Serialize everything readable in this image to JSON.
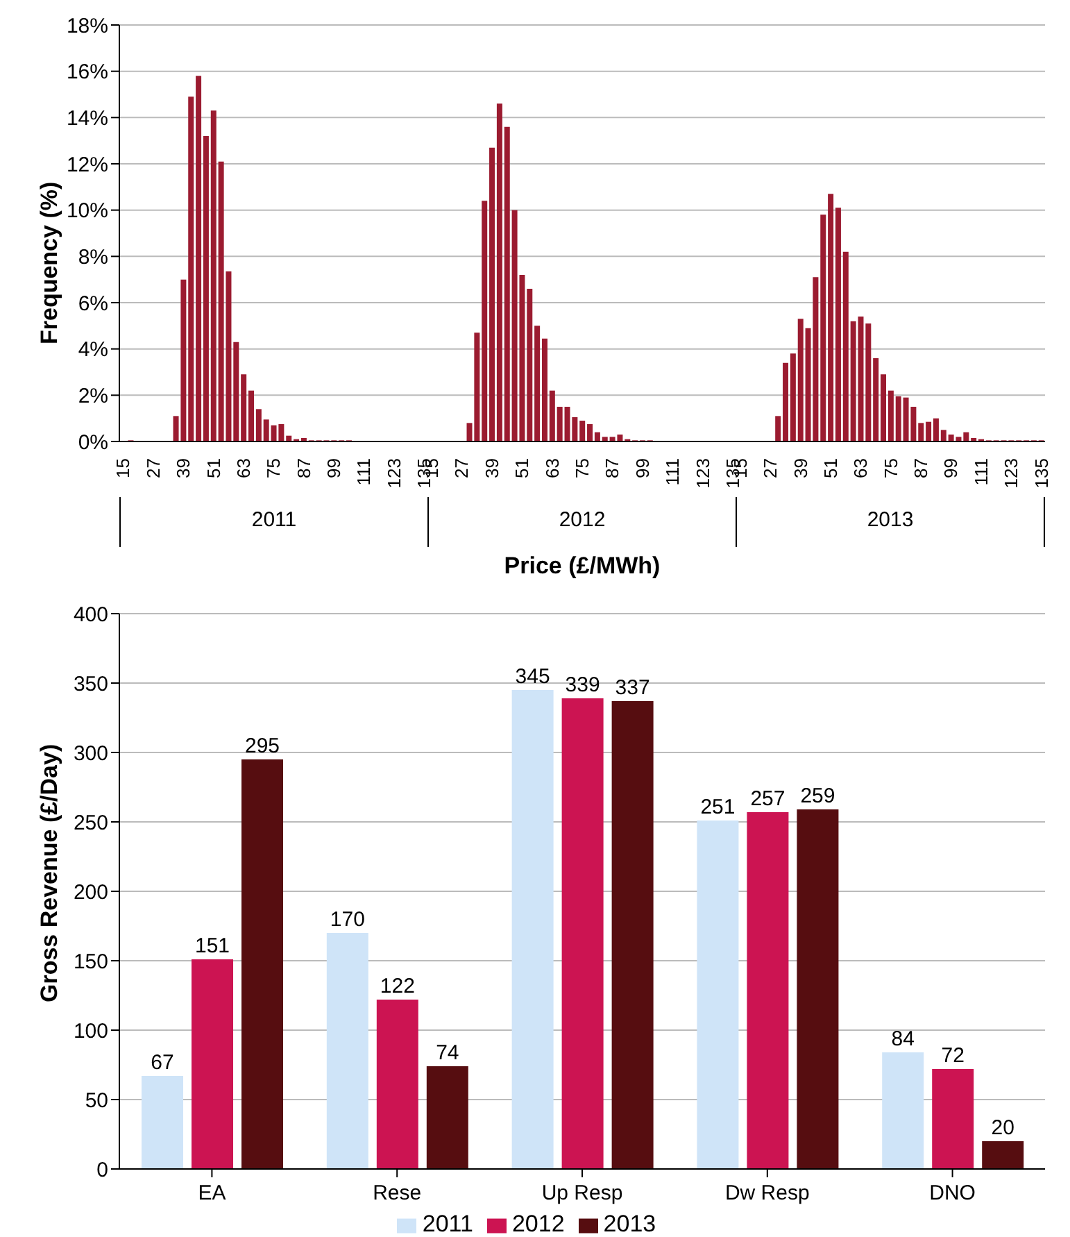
{
  "chart_data": [
    {
      "type": "bar",
      "xlabel": "Price (£/MWh)",
      "ylabel": "Frequency (%)",
      "categories": [
        "15",
        null,
        null,
        null,
        "27",
        null,
        null,
        null,
        "39",
        null,
        null,
        null,
        "51",
        null,
        null,
        null,
        "63",
        null,
        null,
        null,
        "75",
        null,
        null,
        null,
        "87",
        null,
        null,
        null,
        "99",
        null,
        null,
        null,
        "111",
        null,
        null,
        null,
        "123",
        null,
        null,
        null,
        "135",
        "15",
        null,
        null,
        null,
        "27",
        null,
        null,
        null,
        "39",
        null,
        null,
        null,
        "51",
        null,
        null,
        null,
        "63",
        null,
        null,
        null,
        "75",
        null,
        null,
        null,
        "87",
        null,
        null,
        null,
        "99",
        null,
        null,
        null,
        "111",
        null,
        null,
        null,
        "123",
        null,
        null,
        null,
        "135",
        "15",
        null,
        null,
        null,
        "27",
        null,
        null,
        null,
        "39",
        null,
        null,
        null,
        "51",
        null,
        null,
        null,
        "63",
        null,
        null,
        null,
        "75",
        null,
        null,
        null,
        "87",
        null,
        null,
        null,
        "99",
        null,
        null,
        null,
        "111",
        null,
        null,
        null,
        "123",
        null,
        null,
        null,
        "135"
      ],
      "values": [
        0,
        0.05,
        0,
        0,
        0,
        0,
        0,
        1.1,
        7.0,
        14.9,
        15.8,
        13.2,
        14.3,
        12.1,
        7.35,
        4.3,
        2.9,
        2.2,
        1.4,
        0.95,
        0.7,
        0.75,
        0.25,
        0.1,
        0.15,
        0.05,
        0.05,
        0.05,
        0.05,
        0.05,
        0.05,
        0,
        0,
        0,
        0,
        0,
        0,
        0,
        0,
        0,
        0,
        0,
        0,
        0,
        0,
        0,
        0.8,
        4.7,
        10.4,
        12.7,
        14.6,
        13.6,
        10.0,
        7.2,
        6.6,
        5.0,
        4.45,
        2.2,
        1.5,
        1.5,
        1.05,
        0.9,
        0.75,
        0.4,
        0.2,
        0.2,
        0.3,
        0.1,
        0.05,
        0.05,
        0.05,
        null,
        0,
        null,
        0,
        0,
        0,
        0,
        0,
        0,
        0,
        0,
        0,
        0,
        0,
        0,
        0,
        1.1,
        3.4,
        3.8,
        5.3,
        4.9,
        7.1,
        9.8,
        10.7,
        10.1,
        8.2,
        5.2,
        5.4,
        5.1,
        3.6,
        2.9,
        2.2,
        1.95,
        1.9,
        1.5,
        0.8,
        0.85,
        1.0,
        0.5,
        0.3,
        0.2,
        0.4,
        0.15,
        0.1,
        0.05,
        0.05,
        0.05,
        0.05,
        0.05,
        0.05,
        0.05,
        0.05
      ],
      "color": "#9b1b30",
      "ylim": [
        0,
        18
      ],
      "yticks": [
        {
          "value": 0,
          "label": "0%"
        },
        {
          "value": 2,
          "label": "2%"
        },
        {
          "value": 4,
          "label": "4%"
        },
        {
          "value": 6,
          "label": "6%"
        },
        {
          "value": 8,
          "label": "8%"
        },
        {
          "value": 10,
          "label": "10%"
        },
        {
          "value": 12,
          "label": "12%"
        },
        {
          "value": 14,
          "label": "14%"
        },
        {
          "value": 16,
          "label": "16%"
        },
        {
          "value": 18,
          "label": "18%"
        }
      ],
      "grid": "y",
      "legend": false,
      "annotations": [
        "2011",
        "2012",
        "2013"
      ]
    },
    {
      "type": "bar",
      "ylabel": "Gross Revenue (£/Day)",
      "categories": [
        "EA",
        "Rese",
        "Up Resp",
        "Dw Resp",
        "DNO"
      ],
      "series": [
        {
          "name": "2011",
          "color": "#cfe4f8",
          "values": [
            67,
            170,
            345,
            251,
            84
          ]
        },
        {
          "name": "2012",
          "color": "#cc1452",
          "values": [
            151,
            122,
            339,
            257,
            72
          ]
        },
        {
          "name": "2013",
          "color": "#560d10",
          "values": [
            295,
            74,
            337,
            259,
            20
          ]
        }
      ],
      "ylim": [
        0,
        400
      ],
      "yticks": [
        0,
        50,
        100,
        150,
        200,
        250,
        300,
        350,
        400
      ],
      "grid": "y",
      "data_labels": true,
      "legend": "bottom"
    }
  ]
}
